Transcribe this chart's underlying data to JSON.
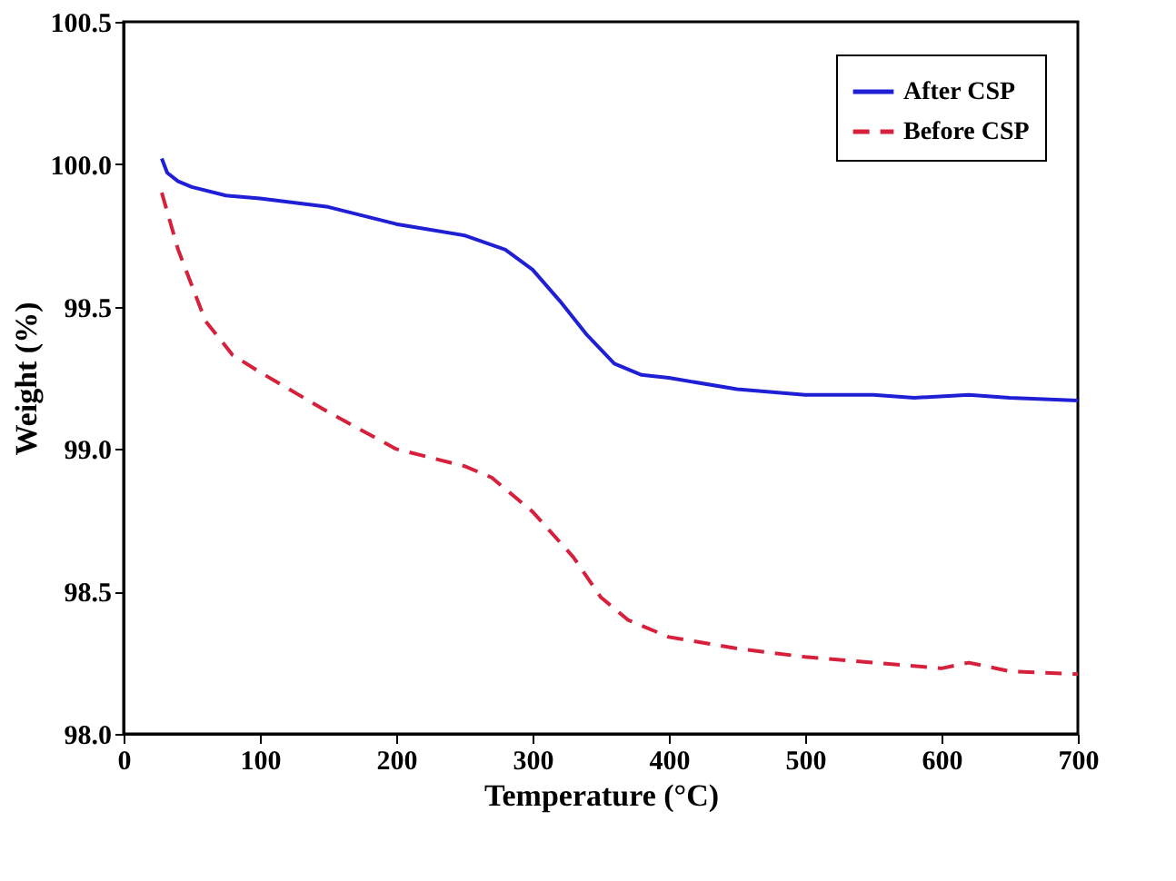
{
  "chart_data": {
    "type": "line",
    "xlabel": "Temperature (°C)",
    "ylabel": "Weight (%)",
    "xlim": [
      0,
      700
    ],
    "xticks": [
      0,
      100,
      200,
      300,
      400,
      500,
      600,
      700
    ],
    "ylim": [
      98.0,
      100.5
    ],
    "yticks": [
      {
        "value": 98,
        "label": "98.0"
      },
      98.5,
      {
        "value": 99,
        "label": "99.0"
      },
      99.5,
      {
        "value": 100,
        "label": "100.0"
      },
      100.5
    ],
    "grid": false,
    "legend": "top right",
    "marker": "none",
    "series": [
      {
        "name": "After CSP",
        "color": "#1f1fd6",
        "line_style": "solid",
        "x": [
          28,
          32,
          40,
          50,
          75,
          100,
          150,
          200,
          250,
          280,
          300,
          320,
          340,
          360,
          380,
          400,
          450,
          500,
          550,
          580,
          620,
          650,
          700
        ],
        "values": [
          100.02,
          99.97,
          99.94,
          99.92,
          99.89,
          99.88,
          99.85,
          99.79,
          99.75,
          99.7,
          99.63,
          99.52,
          99.4,
          99.3,
          99.26,
          99.25,
          99.21,
          99.19,
          99.19,
          99.18,
          99.19,
          99.18,
          99.17
        ]
      },
      {
        "name": "Before CSP",
        "color": "#d6203c",
        "line_style": "dashed",
        "x": [
          28,
          40,
          60,
          80,
          100,
          150,
          200,
          250,
          270,
          300,
          330,
          350,
          370,
          400,
          450,
          500,
          550,
          600,
          620,
          650,
          700
        ],
        "values": [
          99.9,
          99.7,
          99.45,
          99.33,
          99.27,
          99.13,
          99.0,
          98.94,
          98.9,
          98.78,
          98.62,
          98.48,
          98.4,
          98.34,
          98.3,
          98.27,
          98.25,
          98.23,
          98.25,
          98.22,
          98.21
        ]
      }
    ]
  }
}
